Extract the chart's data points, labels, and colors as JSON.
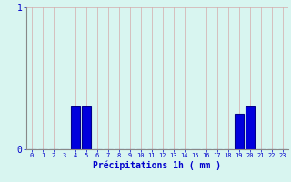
{
  "hours": [
    0,
    1,
    2,
    3,
    4,
    5,
    6,
    7,
    8,
    9,
    10,
    11,
    12,
    13,
    14,
    15,
    16,
    17,
    18,
    19,
    20,
    21,
    22,
    23
  ],
  "values": [
    0,
    0,
    0,
    0,
    0.3,
    0.3,
    0,
    0,
    0,
    0,
    0,
    0,
    0,
    0,
    0,
    0,
    0,
    0,
    0,
    0.25,
    0.3,
    0,
    0,
    0
  ],
  "bar_color": "#0000dd",
  "bar_edge_color": "#00008b",
  "background_color": "#d8f5f0",
  "grid_color": "#d4aaaa",
  "axis_color": "#888888",
  "text_color": "#0000cc",
  "xlabel": "Précipitations 1h ( mm )",
  "ylim": [
    0,
    1
  ],
  "yticks": [
    0,
    1
  ],
  "xlim": [
    -0.5,
    23.5
  ]
}
